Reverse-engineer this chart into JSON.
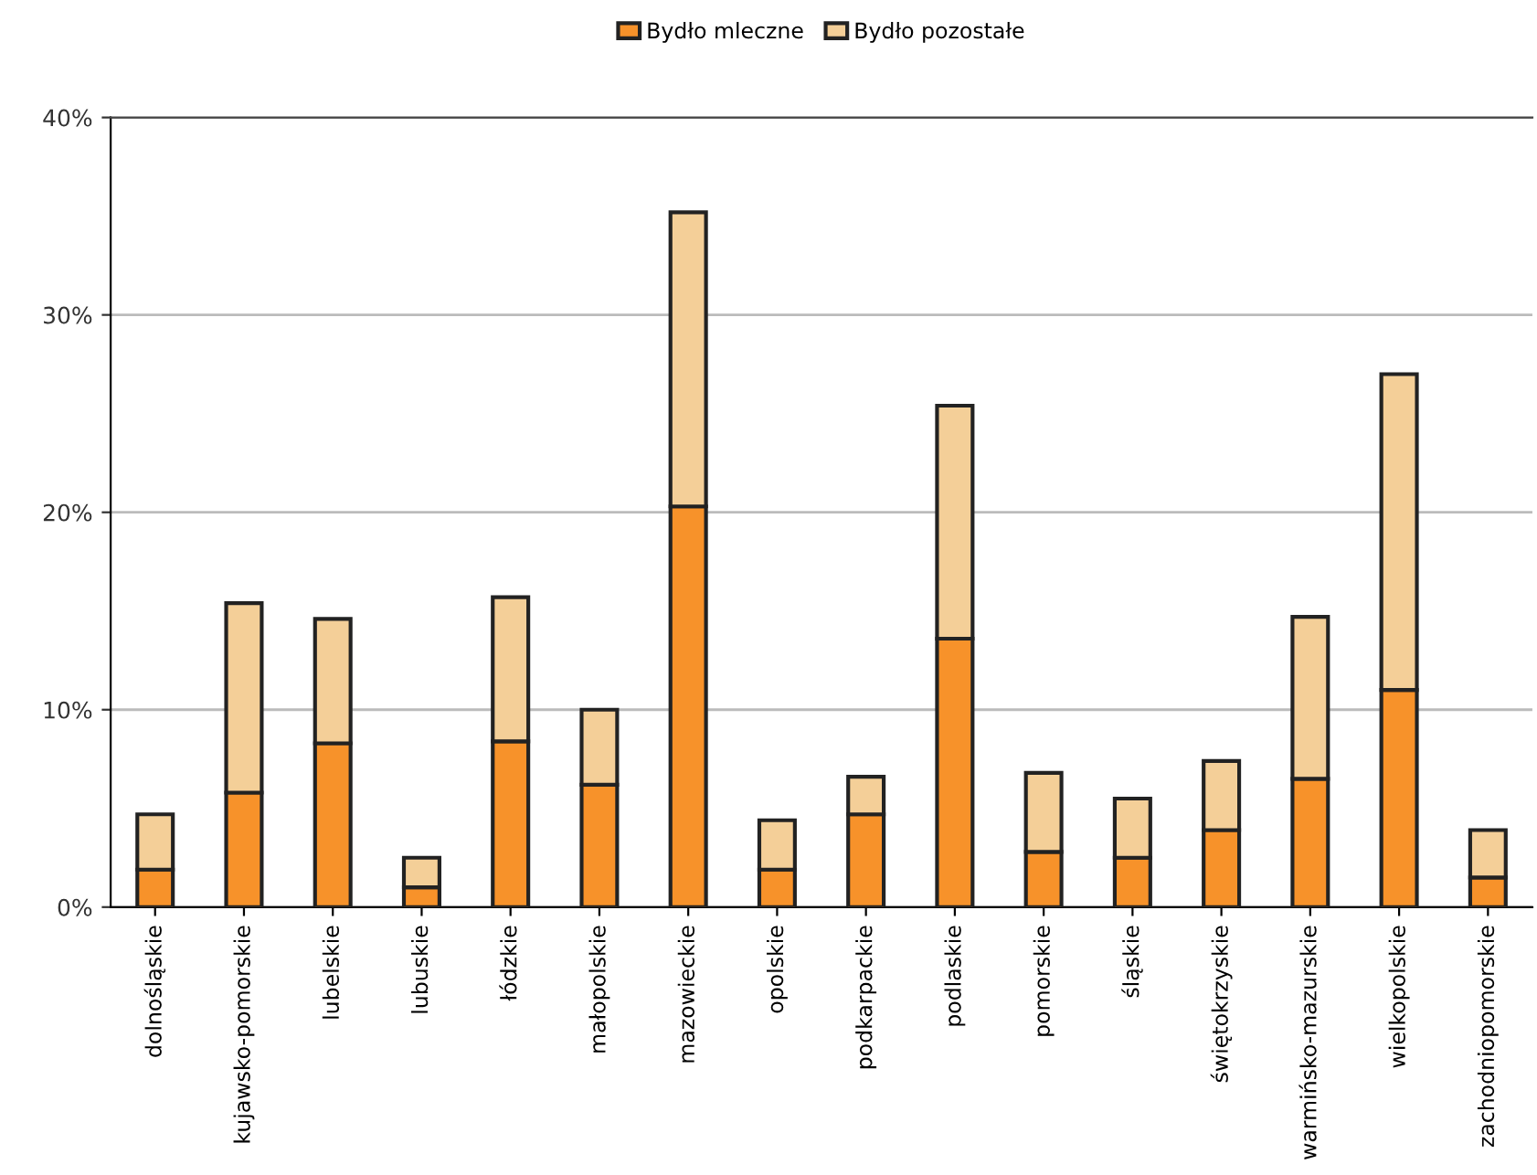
{
  "chart_data": {
    "type": "bar",
    "stacked": true,
    "categories": [
      "dolnośląskie",
      "kujawsko-pomorskie",
      "lubelskie",
      "lubuskie",
      "łódzkie",
      "małopolskie",
      "mazowieckie",
      "opolskie",
      "podkarpackie",
      "podlaskie",
      "pomorskie",
      "śląskie",
      "świętokrzyskie",
      "warmińsko-mazurskie",
      "wielkopolskie",
      "zachodniopomorskie"
    ],
    "series": [
      {
        "name": "Bydło mleczne",
        "color": "#f7922a",
        "values": [
          1.9,
          5.8,
          8.3,
          1.0,
          8.4,
          6.2,
          20.3,
          1.9,
          4.7,
          13.6,
          2.8,
          2.5,
          3.9,
          6.5,
          11.0,
          1.5
        ]
      },
      {
        "name": "Bydło pozostałe",
        "color": "#f4cf98",
        "values": [
          2.8,
          9.6,
          6.3,
          1.5,
          7.3,
          3.8,
          14.9,
          2.5,
          1.9,
          11.8,
          4.0,
          3.0,
          3.5,
          8.2,
          16.0,
          2.4
        ]
      }
    ],
    "ylim": [
      0,
      40
    ],
    "yticks": [
      {
        "value": 0,
        "label": "0%"
      },
      {
        "value": 10,
        "label": "10%"
      },
      {
        "value": 20,
        "label": "20%"
      },
      {
        "value": 30,
        "label": "30%"
      },
      {
        "value": 40,
        "label": "40%"
      }
    ],
    "grid": "y",
    "legend": "top"
  }
}
